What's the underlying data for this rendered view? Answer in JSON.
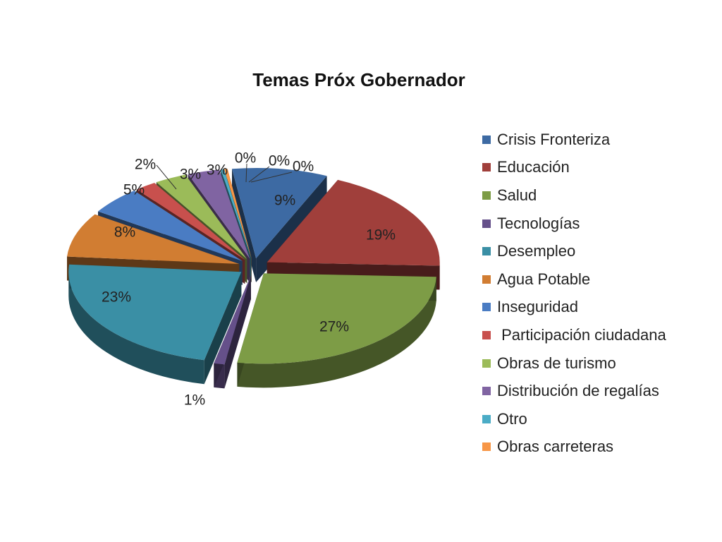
{
  "chart_data": {
    "type": "pie",
    "title": "Temas Próx Gobernador",
    "slices": [
      {
        "name": "Crisis Fronteriza",
        "value": 9,
        "label": "9%",
        "color": "#3d6aa3"
      },
      {
        "name": "Educación",
        "value": 19,
        "label": "19%",
        "color": "#a03f3b"
      },
      {
        "name": "Salud",
        "value": 27,
        "label": "27%",
        "color": "#7d9c46"
      },
      {
        "name": "Tecnologías",
        "value": 1,
        "label": "1%",
        "color": "#65508a"
      },
      {
        "name": "Desempleo",
        "value": 23,
        "label": "23%",
        "color": "#3a8fa5"
      },
      {
        "name": "Agua Potable",
        "value": 8,
        "label": "8%",
        "color": "#d17d32"
      },
      {
        "name": "Inseguridad",
        "value": 5,
        "label": "5%",
        "color": "#4a7cc3"
      },
      {
        "name": " Participación ciudadana",
        "value": 2,
        "label": "2%",
        "color": "#c8504d"
      },
      {
        "name": "Obras de turismo",
        "value": 3,
        "label": "3%",
        "color": "#9bbb59"
      },
      {
        "name": "Distribución de regalías",
        "value": 3,
        "label": "3%",
        "color": "#8064a2"
      },
      {
        "name": "Otro",
        "value": 0.3,
        "label": "0%",
        "color": "#4bacc6"
      },
      {
        "name": "Obras carreteras",
        "value": 0.3,
        "label": "0%",
        "color": "#f79646"
      }
    ],
    "extra_labels": [
      "0%"
    ],
    "legend": "right"
  }
}
